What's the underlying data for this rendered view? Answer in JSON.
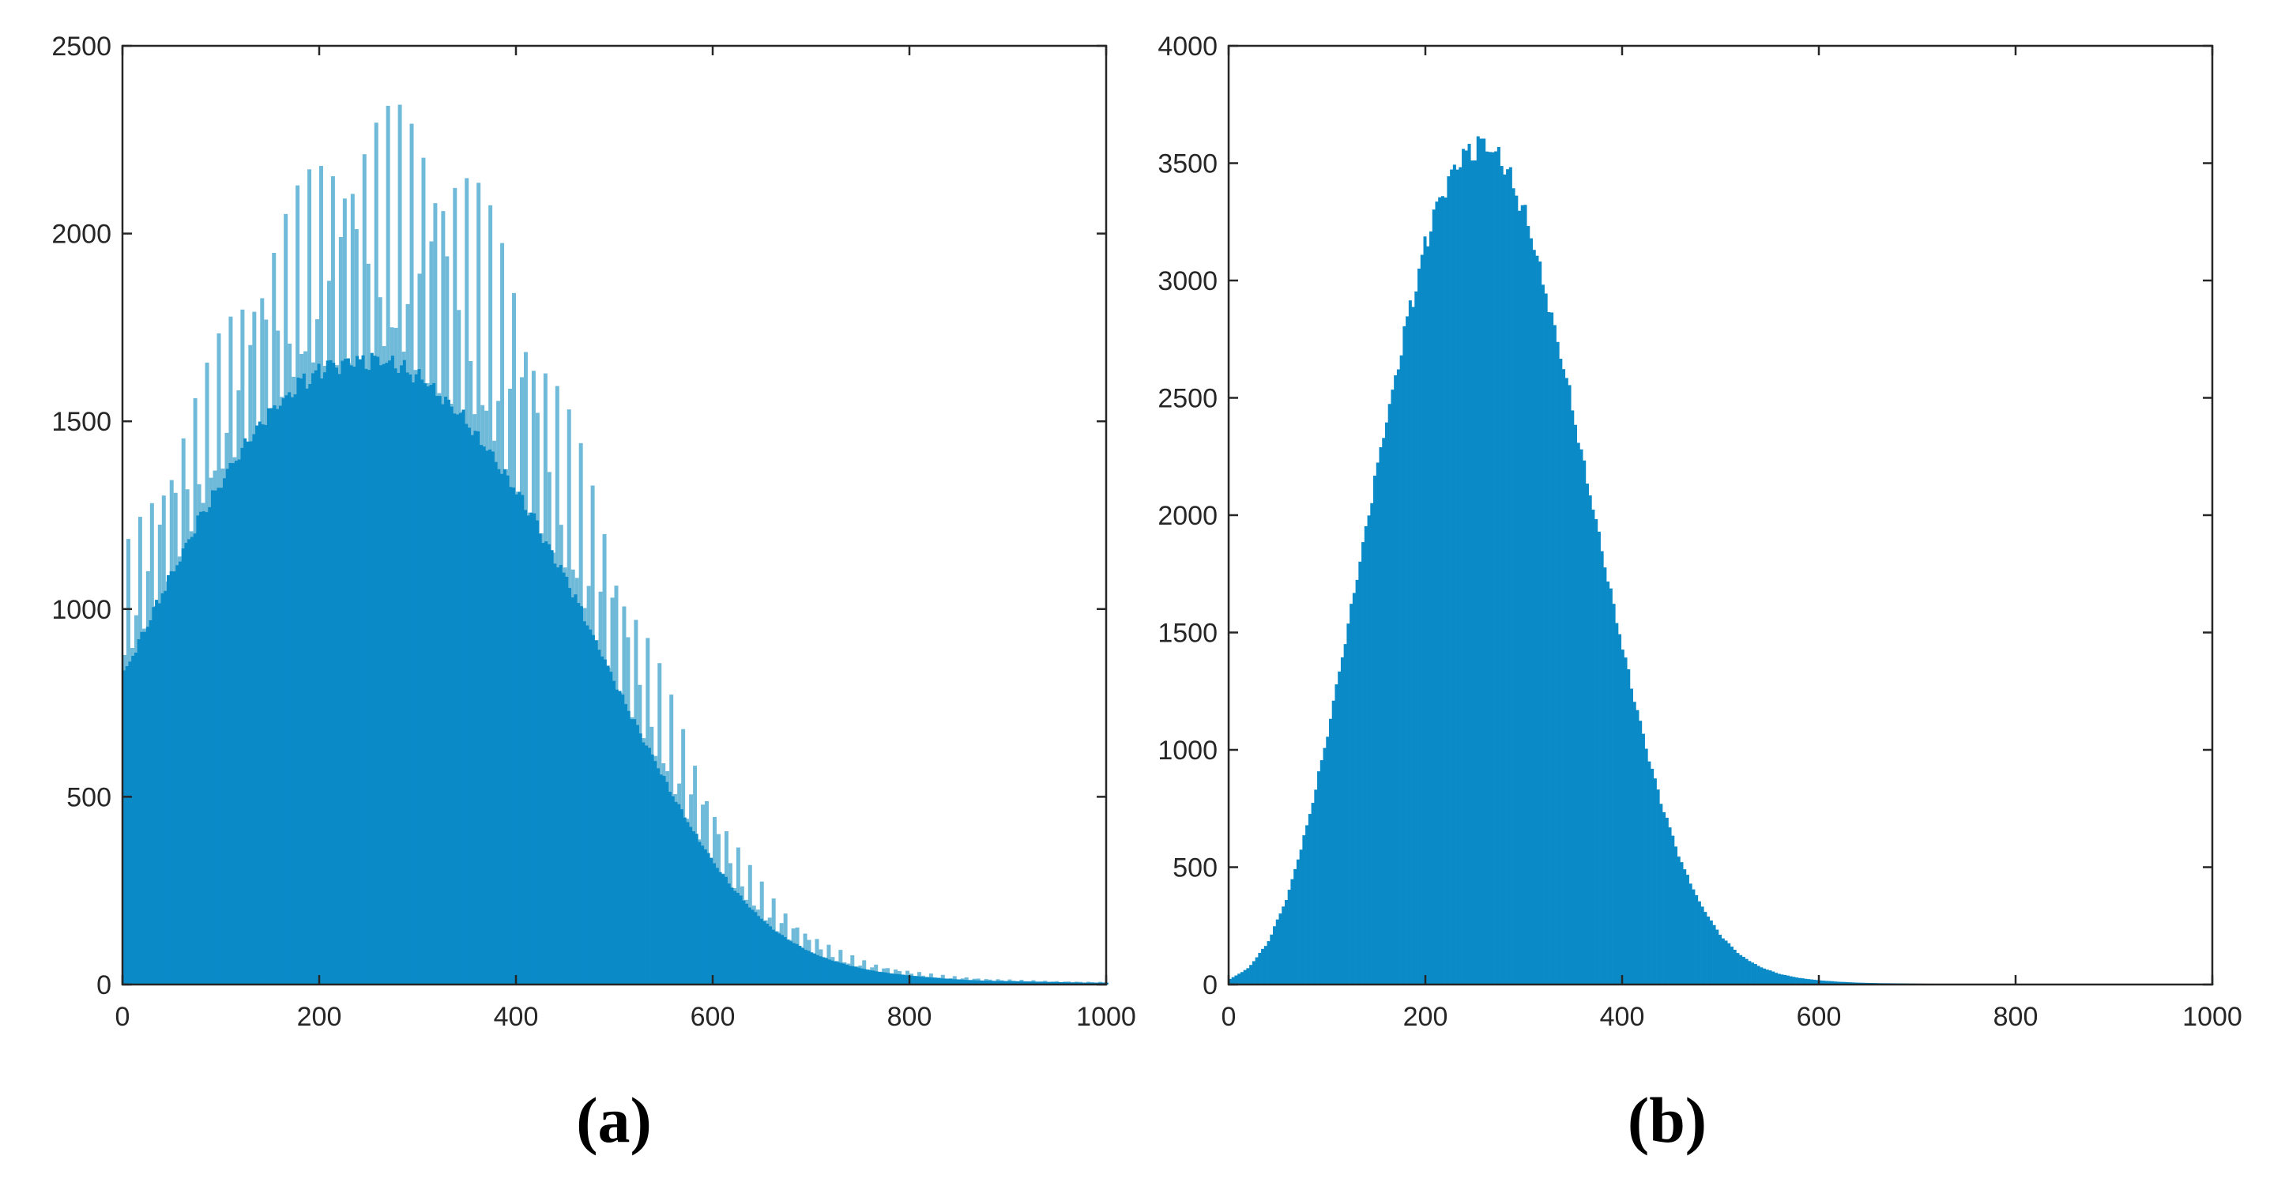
{
  "colors": {
    "bar": "#0a8ac7",
    "bar_light": "#6fbad9",
    "axis": "#262626",
    "background": "#ffffff"
  },
  "chart_data": [
    {
      "id": "a",
      "type": "bar",
      "panel_label": "(a)",
      "x_range": [
        0,
        1000
      ],
      "ylim": [
        0,
        2500
      ],
      "x_ticks": [
        0,
        200,
        400,
        600,
        800,
        1000
      ],
      "y_ticks": [
        0,
        500,
        1000,
        1500,
        2000,
        2500
      ],
      "grid": false,
      "series": [
        {
          "role": "envelope",
          "x": [
            0,
            20,
            40,
            60,
            80,
            100,
            120,
            140,
            160,
            180,
            200,
            220,
            240,
            260,
            280,
            300,
            320,
            340,
            360,
            380,
            400,
            420,
            440,
            460,
            480,
            500,
            520,
            540,
            560,
            580,
            600,
            620,
            640,
            660,
            680,
            700,
            720,
            740,
            760,
            780,
            800,
            820,
            840,
            860,
            880,
            900,
            920,
            940,
            960,
            980,
            1000
          ],
          "values": [
            1150,
            1280,
            1400,
            1500,
            1620,
            1750,
            1860,
            1960,
            2060,
            2140,
            2210,
            2270,
            2310,
            2340,
            2350,
            2330,
            2290,
            2230,
            2150,
            2050,
            1930,
            1790,
            1640,
            1490,
            1340,
            1190,
            1040,
            900,
            760,
            630,
            510,
            400,
            310,
            240,
            185,
            140,
            105,
            80,
            60,
            48,
            38,
            30,
            24,
            20,
            16,
            14,
            12,
            10,
            9,
            8,
            7
          ]
        },
        {
          "role": "base",
          "x": [
            0,
            20,
            40,
            60,
            80,
            100,
            120,
            140,
            160,
            180,
            200,
            220,
            240,
            260,
            280,
            300,
            320,
            340,
            360,
            380,
            400,
            420,
            440,
            460,
            480,
            500,
            520,
            540,
            560,
            580,
            600,
            620,
            640,
            660,
            680,
            700,
            720,
            740,
            760,
            780,
            800,
            820,
            840,
            860,
            880,
            900,
            920,
            940,
            960,
            980,
            1000
          ],
          "values": [
            820,
            930,
            1040,
            1150,
            1250,
            1340,
            1420,
            1490,
            1550,
            1600,
            1630,
            1650,
            1660,
            1660,
            1650,
            1620,
            1580,
            1530,
            1470,
            1400,
            1320,
            1230,
            1130,
            1030,
            920,
            810,
            700,
            600,
            500,
            410,
            330,
            260,
            200,
            150,
            115,
            85,
            65,
            50,
            38,
            30,
            24,
            19,
            15,
            12,
            10,
            9,
            8,
            7,
            6,
            5,
            5
          ]
        }
      ]
    },
    {
      "id": "b",
      "type": "bar",
      "panel_label": "(b)",
      "x_range": [
        0,
        1000
      ],
      "ylim": [
        0,
        4000
      ],
      "x_ticks": [
        0,
        200,
        400,
        600,
        800,
        1000
      ],
      "y_ticks": [
        0,
        500,
        1000,
        1500,
        2000,
        2500,
        3000,
        3500,
        4000
      ],
      "grid": false,
      "series": [
        {
          "role": "base",
          "x": [
            0,
            20,
            40,
            60,
            80,
            100,
            120,
            140,
            160,
            180,
            200,
            220,
            240,
            260,
            280,
            300,
            320,
            340,
            360,
            380,
            400,
            420,
            440,
            460,
            480,
            500,
            520,
            540,
            560,
            580,
            600,
            620,
            640,
            660,
            680,
            700,
            720,
            740,
            760,
            780,
            800,
            820,
            840,
            860,
            880,
            900,
            920,
            940,
            960,
            980,
            1000
          ],
          "values": [
            20,
            70,
            180,
            380,
            680,
            1060,
            1500,
            1950,
            2400,
            2800,
            3150,
            3400,
            3540,
            3580,
            3500,
            3300,
            3000,
            2650,
            2250,
            1850,
            1450,
            1080,
            770,
            520,
            340,
            210,
            125,
            75,
            45,
            28,
            18,
            12,
            8,
            6,
            5,
            4,
            3,
            3,
            2,
            2,
            2,
            2,
            1,
            1,
            1,
            1,
            1,
            1,
            1,
            1,
            1
          ]
        }
      ]
    }
  ]
}
